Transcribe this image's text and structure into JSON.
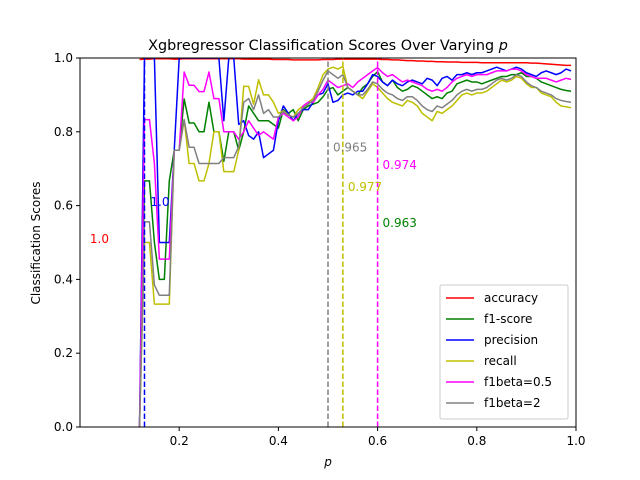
{
  "chart_data": {
    "type": "line",
    "title": "Xgbregressor Classification Scores Over Varying p",
    "title_prefix": "Xgbregressor Classification Scores Over Varying ",
    "title_var": "p",
    "xlabel": "p",
    "ylabel": "Classification Scores",
    "xlim": [
      0.0,
      1.0
    ],
    "ylim": [
      0.0,
      1.0
    ],
    "xticks": [
      0.2,
      0.4,
      0.6,
      0.8,
      1.0
    ],
    "xtick_labels": [
      "0.2",
      "0.4",
      "0.6",
      "0.8",
      "1.0"
    ],
    "yticks": [
      0.0,
      0.2,
      0.4,
      0.6,
      0.8,
      1.0
    ],
    "ytick_labels": [
      "0.0",
      "0.2",
      "0.4",
      "0.6",
      "0.8",
      "1.0"
    ],
    "grid": false,
    "legend_position": "lower right",
    "x": [
      0.12,
      0.13,
      0.14,
      0.15,
      0.16,
      0.17,
      0.18,
      0.19,
      0.2,
      0.21,
      0.22,
      0.23,
      0.24,
      0.25,
      0.26,
      0.27,
      0.28,
      0.29,
      0.3,
      0.31,
      0.32,
      0.33,
      0.34,
      0.35,
      0.36,
      0.37,
      0.38,
      0.39,
      0.4,
      0.41,
      0.42,
      0.43,
      0.44,
      0.45,
      0.46,
      0.47,
      0.48,
      0.49,
      0.5,
      0.51,
      0.52,
      0.53,
      0.54,
      0.55,
      0.56,
      0.57,
      0.58,
      0.59,
      0.6,
      0.61,
      0.62,
      0.63,
      0.64,
      0.65,
      0.66,
      0.67,
      0.68,
      0.69,
      0.7,
      0.71,
      0.72,
      0.73,
      0.74,
      0.75,
      0.76,
      0.77,
      0.78,
      0.79,
      0.8,
      0.81,
      0.82,
      0.83,
      0.84,
      0.85,
      0.86,
      0.87,
      0.88,
      0.89,
      0.9,
      0.91,
      0.92,
      0.93,
      0.94,
      0.95,
      0.96,
      0.97,
      0.98,
      0.99
    ],
    "series": [
      {
        "name": "accuracy",
        "color": "#ff0000",
        "values": [
          0.996,
          0.997,
          0.997,
          0.998,
          0.998,
          0.998,
          0.998,
          0.997,
          0.997,
          0.998,
          0.998,
          0.998,
          0.998,
          0.998,
          0.998,
          0.998,
          0.998,
          0.998,
          0.998,
          0.998,
          0.998,
          0.997,
          0.997,
          0.997,
          0.997,
          0.997,
          0.997,
          0.996,
          0.996,
          0.996,
          0.996,
          0.995,
          0.995,
          0.995,
          0.995,
          0.995,
          0.995,
          0.996,
          0.996,
          0.996,
          0.997,
          0.997,
          0.997,
          0.997,
          0.997,
          0.997,
          0.997,
          0.997,
          0.997,
          0.996,
          0.996,
          0.995,
          0.995,
          0.994,
          0.993,
          0.993,
          0.992,
          0.992,
          0.991,
          0.991,
          0.99,
          0.99,
          0.989,
          0.989,
          0.989,
          0.988,
          0.988,
          0.988,
          0.988,
          0.987,
          0.987,
          0.987,
          0.987,
          0.987,
          0.987,
          0.987,
          0.987,
          0.987,
          0.987,
          0.986,
          0.986,
          0.985,
          0.984,
          0.983,
          0.982,
          0.981,
          0.98,
          0.98
        ]
      },
      {
        "name": "f1-score",
        "color": "#008000",
        "values": [
          0.0,
          0.667,
          0.667,
          0.5,
          0.4,
          0.4,
          0.667,
          0.75,
          0.75,
          0.889,
          0.824,
          0.824,
          0.8,
          0.8,
          0.88,
          0.8,
          0.8,
          0.72,
          0.8,
          0.8,
          0.75,
          0.8,
          0.87,
          0.85,
          0.83,
          0.83,
          0.83,
          0.82,
          0.81,
          0.86,
          0.85,
          0.86,
          0.83,
          0.86,
          0.87,
          0.875,
          0.88,
          0.895,
          0.915,
          0.92,
          0.9,
          0.91,
          0.92,
          0.91,
          0.9,
          0.92,
          0.93,
          0.95,
          0.963,
          0.935,
          0.925,
          0.94,
          0.92,
          0.91,
          0.915,
          0.925,
          0.92,
          0.91,
          0.9,
          0.89,
          0.895,
          0.89,
          0.905,
          0.91,
          0.93,
          0.935,
          0.94,
          0.935,
          0.935,
          0.93,
          0.935,
          0.94,
          0.945,
          0.95,
          0.95,
          0.955,
          0.955,
          0.96,
          0.95,
          0.95,
          0.945,
          0.935,
          0.93,
          0.925,
          0.92,
          0.915,
          0.912,
          0.91
        ]
      },
      {
        "name": "precision",
        "color": "#0000ff",
        "values": [
          0.0,
          1.0,
          1.0,
          1.0,
          0.5,
          0.5,
          0.5,
          0.75,
          1.0,
          1.0,
          1.0,
          1.0,
          1.0,
          1.0,
          1.0,
          1.0,
          1.0,
          0.83,
          1.0,
          1.0,
          0.82,
          0.83,
          0.79,
          0.78,
          0.8,
          0.73,
          0.74,
          0.75,
          0.83,
          0.87,
          0.85,
          0.83,
          0.85,
          0.86,
          0.86,
          0.88,
          0.9,
          0.905,
          0.93,
          0.88,
          0.885,
          0.9,
          0.905,
          0.9,
          0.91,
          0.91,
          0.93,
          0.955,
          0.95,
          0.935,
          0.925,
          0.94,
          0.93,
          0.925,
          0.935,
          0.94,
          0.935,
          0.93,
          0.945,
          0.94,
          0.925,
          0.945,
          0.95,
          0.94,
          0.955,
          0.955,
          0.96,
          0.955,
          0.96,
          0.96,
          0.965,
          0.97,
          0.975,
          0.97,
          0.965,
          0.97,
          0.975,
          0.97,
          0.96,
          0.955,
          0.95,
          0.96,
          0.965,
          0.96,
          0.955,
          0.96,
          0.97,
          0.965
        ]
      },
      {
        "name": "recall",
        "color": "#bfbf00",
        "values": [
          0.0,
          0.5,
          0.5,
          0.333,
          0.333,
          0.333,
          0.333,
          0.75,
          0.75,
          0.833,
          0.714,
          0.714,
          0.667,
          0.667,
          0.714,
          0.8,
          0.8,
          0.692,
          0.692,
          0.692,
          0.75,
          0.923,
          0.923,
          0.875,
          0.941,
          0.9,
          0.9,
          0.88,
          0.85,
          0.857,
          0.846,
          0.84,
          0.86,
          0.87,
          0.88,
          0.89,
          0.92,
          0.955,
          0.97,
          0.975,
          0.97,
          0.977,
          0.92,
          0.91,
          0.9,
          0.89,
          0.91,
          0.93,
          0.92,
          0.905,
          0.89,
          0.88,
          0.875,
          0.87,
          0.885,
          0.88,
          0.87,
          0.85,
          0.84,
          0.83,
          0.855,
          0.85,
          0.86,
          0.87,
          0.885,
          0.9,
          0.905,
          0.9,
          0.905,
          0.905,
          0.91,
          0.92,
          0.93,
          0.94,
          0.935,
          0.94,
          0.95,
          0.945,
          0.93,
          0.92,
          0.92,
          0.905,
          0.9,
          0.895,
          0.88,
          0.87,
          0.868,
          0.865
        ]
      },
      {
        "name": "f1beta=0.5",
        "color": "#ff00ff",
        "values": [
          0.0,
          0.833,
          0.833,
          0.714,
          0.455,
          0.455,
          0.455,
          0.75,
          0.75,
          0.962,
          0.926,
          0.926,
          0.909,
          0.909,
          0.962,
          0.89,
          0.89,
          0.8,
          0.8,
          0.8,
          0.78,
          0.8,
          0.83,
          0.81,
          0.79,
          0.8,
          0.79,
          0.78,
          0.84,
          0.85,
          0.84,
          0.83,
          0.84,
          0.87,
          0.88,
          0.88,
          0.9,
          0.915,
          0.94,
          0.93,
          0.92,
          0.925,
          0.93,
          0.92,
          0.935,
          0.945,
          0.955,
          0.965,
          0.974,
          0.96,
          0.95,
          0.955,
          0.945,
          0.935,
          0.94,
          0.935,
          0.93,
          0.925,
          0.915,
          0.91,
          0.915,
          0.91,
          0.92,
          0.935,
          0.945,
          0.95,
          0.955,
          0.95,
          0.955,
          0.955,
          0.955,
          0.96,
          0.965,
          0.965,
          0.965,
          0.97,
          0.97,
          0.965,
          0.955,
          0.95,
          0.945,
          0.945,
          0.945,
          0.94,
          0.935,
          0.94,
          0.945,
          0.942
        ]
      },
      {
        "name": "f1beta=2",
        "color": "#808080",
        "values": [
          0.0,
          0.556,
          0.556,
          0.385,
          0.357,
          0.357,
          0.357,
          0.75,
          0.75,
          0.833,
          0.758,
          0.758,
          0.714,
          0.714,
          0.714,
          0.714,
          0.714,
          0.73,
          0.73,
          0.73,
          0.76,
          0.88,
          0.89,
          0.86,
          0.9,
          0.85,
          0.86,
          0.84,
          0.84,
          0.855,
          0.845,
          0.84,
          0.85,
          0.865,
          0.875,
          0.885,
          0.91,
          0.94,
          0.965,
          0.955,
          0.945,
          0.955,
          0.92,
          0.91,
          0.9,
          0.9,
          0.915,
          0.935,
          0.93,
          0.915,
          0.905,
          0.9,
          0.89,
          0.885,
          0.895,
          0.895,
          0.885,
          0.87,
          0.86,
          0.855,
          0.87,
          0.865,
          0.875,
          0.885,
          0.9,
          0.91,
          0.915,
          0.91,
          0.915,
          0.915,
          0.92,
          0.93,
          0.94,
          0.945,
          0.94,
          0.945,
          0.955,
          0.95,
          0.935,
          0.925,
          0.92,
          0.91,
          0.905,
          0.9,
          0.89,
          0.885,
          0.882,
          0.88
        ]
      }
    ],
    "vlines": [
      {
        "x": 0.13,
        "color": "#0000ff"
      },
      {
        "x": 0.5,
        "color": "#808080"
      },
      {
        "x": 0.53,
        "color": "#bfbf00"
      },
      {
        "x": 0.6,
        "color": "#ff00ff"
      }
    ],
    "annotations": [
      {
        "text": "1.0",
        "x": 0.02,
        "y": 0.51,
        "color": "#ff0000"
      },
      {
        "text": "1.0",
        "x": 0.142,
        "y": 0.61,
        "color": "#0000ff"
      },
      {
        "text": "0.965",
        "x": 0.51,
        "y": 0.757,
        "color": "#808080"
      },
      {
        "text": "0.977",
        "x": 0.54,
        "y": 0.65,
        "color": "#bfbf00"
      },
      {
        "text": "0.974",
        "x": 0.61,
        "y": 0.71,
        "color": "#ff00ff"
      },
      {
        "text": "0.963",
        "x": 0.61,
        "y": 0.553,
        "color": "#008000"
      }
    ]
  }
}
